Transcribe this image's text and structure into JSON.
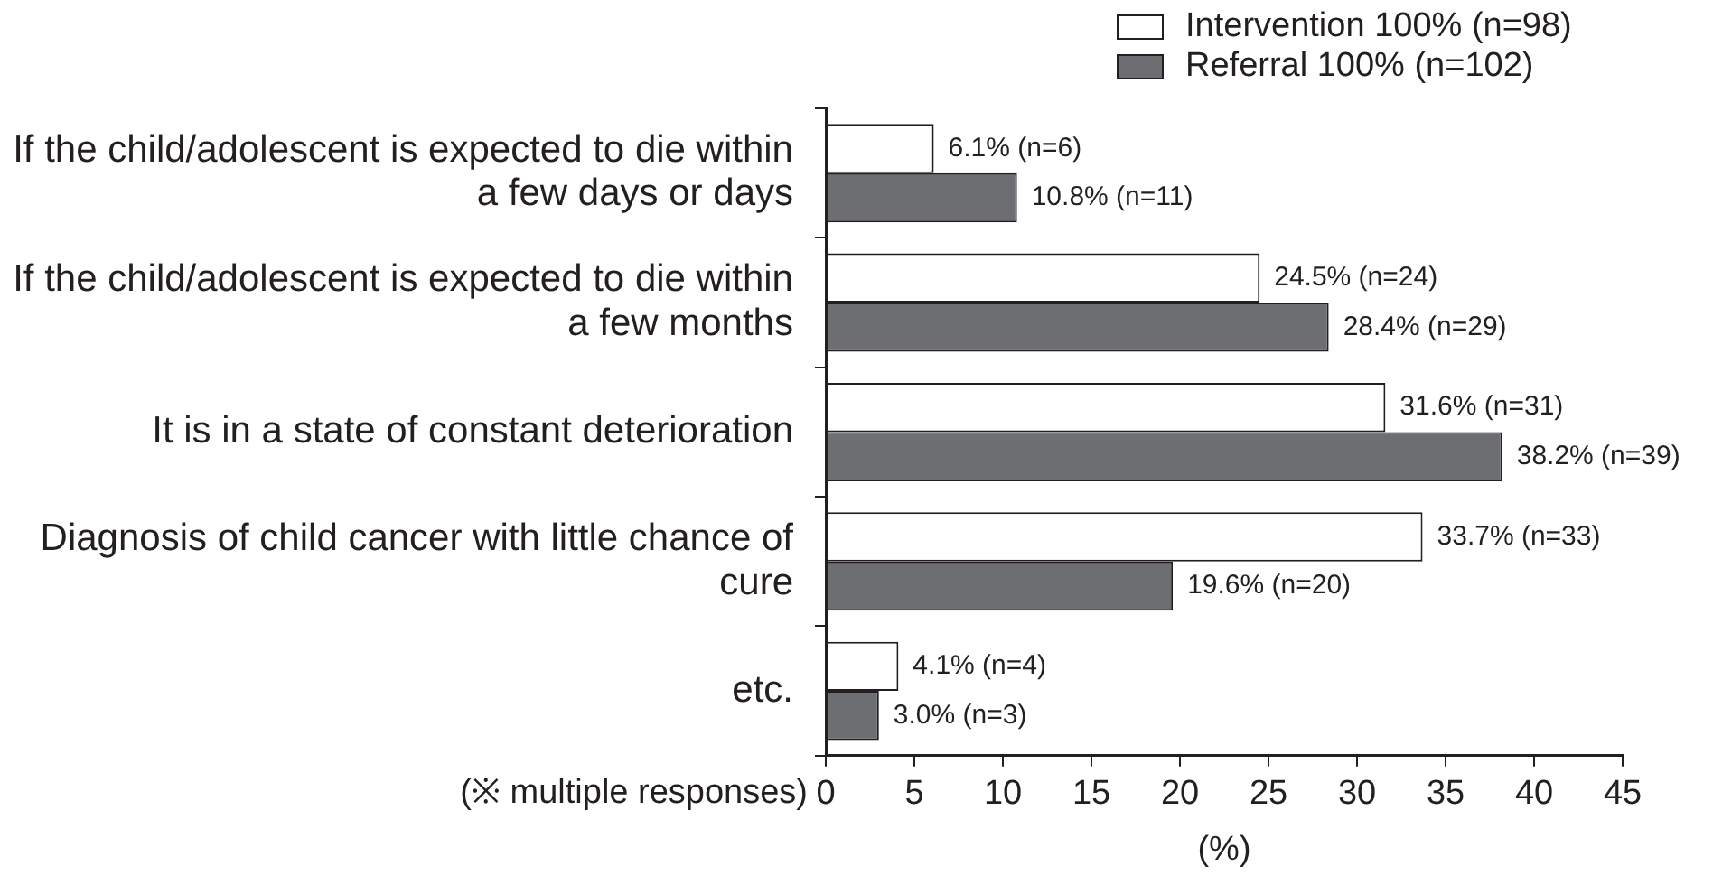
{
  "chart_data": {
    "type": "bar",
    "orientation": "horizontal",
    "categories": [
      "If the child/adolescent is expected to die within a few days or days",
      "If the child/adolescent is expected to die within a few months",
      "It is in a state of constant deterioration",
      "Diagnosis of child cancer with little chance of cure",
      "etc."
    ],
    "series": [
      {
        "name": "Intervention 100% (n=98)",
        "color": "#ffffff",
        "values": [
          6.1,
          24.5,
          31.6,
          33.7,
          4.1
        ],
        "value_labels": [
          "6.1% (n=6)",
          "24.5% (n=24)",
          "31.6% (n=31)",
          "33.7% (n=33)",
          "4.1% (n=4)"
        ]
      },
      {
        "name": "Referral 100% (n=102)",
        "color": "#6d6e71",
        "values": [
          10.8,
          28.4,
          38.2,
          19.6,
          3.0
        ],
        "value_labels": [
          "10.8% (n=11)",
          "28.4% (n=29)",
          "38.2% (n=39)",
          "19.6% (n=20)",
          "3.0% (n=3)"
        ]
      }
    ],
    "xlabel": "(%)",
    "xlim": [
      0,
      45
    ],
    "xticks": [
      0,
      5,
      10,
      15,
      20,
      25,
      30,
      35,
      40,
      45
    ],
    "grid": false,
    "legend": "top right",
    "annotations": [
      "(※ multiple responses)"
    ]
  }
}
